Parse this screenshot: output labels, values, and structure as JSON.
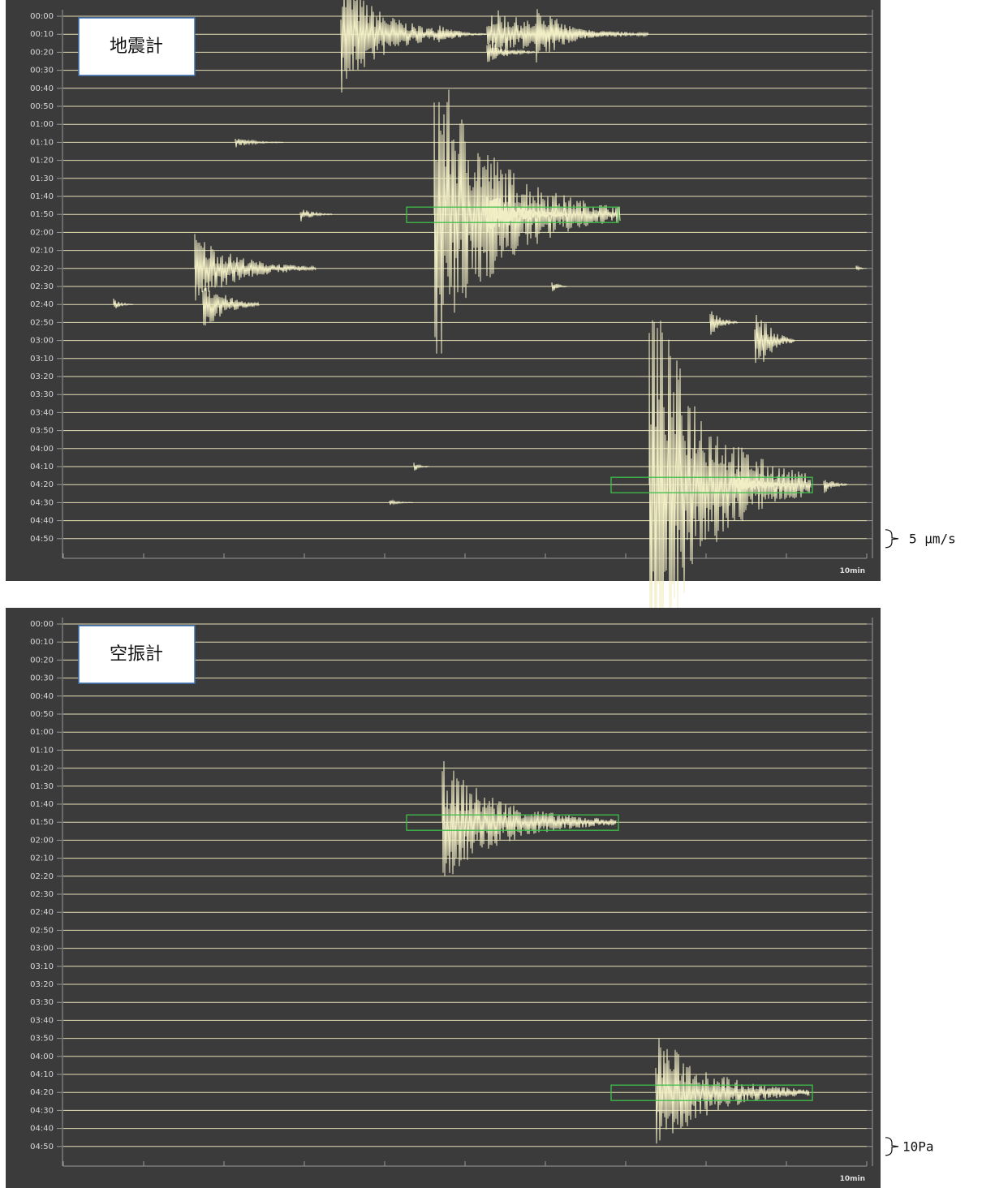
{
  "time_labels": [
    "00:00",
    "00:10",
    "00:20",
    "00:30",
    "00:40",
    "00:50",
    "01:00",
    "01:10",
    "01:20",
    "01:30",
    "01:40",
    "01:50",
    "02:00",
    "02:10",
    "02:20",
    "02:30",
    "02:40",
    "02:50",
    "03:00",
    "03:10",
    "03:20",
    "03:30",
    "03:40",
    "03:50",
    "04:00",
    "04:10",
    "04:20",
    "04:30",
    "04:40",
    "04:50"
  ],
  "panels": [
    {
      "label": "地震計",
      "scale": "5 μm/s",
      "axis_label": "10min"
    },
    {
      "label": "空振計",
      "scale": "10Pa",
      "axis_label": "10min"
    }
  ]
}
